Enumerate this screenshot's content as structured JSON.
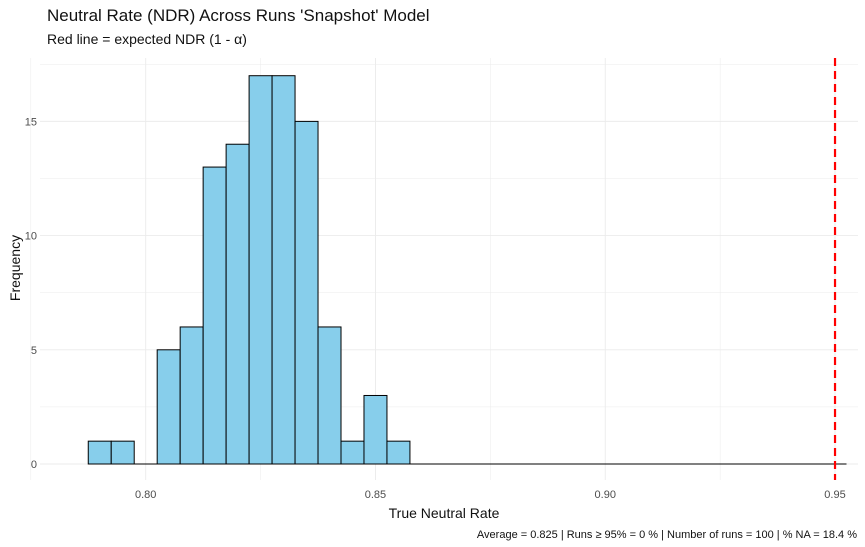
{
  "chart_data": {
    "type": "bar",
    "title": "Neutral Rate (NDR) Across Runs 'Snapshot' Model",
    "subtitle": "Red line = expected NDR (1 - α)",
    "xlabel": "True Neutral Rate",
    "ylabel": "Frequency",
    "caption": "Average = 0.825 | Runs ≥ 95% = 0 % | Number of runs = 100 | % NA = 18.4 %",
    "xlim": [
      0.777,
      0.955
    ],
    "ylim": [
      0,
      17.6
    ],
    "x_ticks": [
      0.8,
      0.85,
      0.9,
      0.95
    ],
    "x_tick_labels": [
      "0.80",
      "0.85",
      "0.90",
      "0.95"
    ],
    "y_ticks": [
      0,
      5,
      10,
      15
    ],
    "y_tick_labels": [
      "0",
      "5",
      "10",
      "15"
    ],
    "grid": true,
    "bin_width": 0.005,
    "bins": [
      {
        "start": 0.7875,
        "end": 0.7925,
        "count": 1
      },
      {
        "start": 0.7925,
        "end": 0.7975,
        "count": 1
      },
      {
        "start": 0.7975,
        "end": 0.8025,
        "count": 0
      },
      {
        "start": 0.8025,
        "end": 0.8075,
        "count": 5
      },
      {
        "start": 0.8075,
        "end": 0.8125,
        "count": 6
      },
      {
        "start": 0.8125,
        "end": 0.8175,
        "count": 13
      },
      {
        "start": 0.8175,
        "end": 0.8225,
        "count": 14
      },
      {
        "start": 0.8225,
        "end": 0.8275,
        "count": 17
      },
      {
        "start": 0.8275,
        "end": 0.8325,
        "count": 17
      },
      {
        "start": 0.8325,
        "end": 0.8375,
        "count": 15
      },
      {
        "start": 0.8375,
        "end": 0.8425,
        "count": 6
      },
      {
        "start": 0.8425,
        "end": 0.8475,
        "count": 1
      },
      {
        "start": 0.8475,
        "end": 0.8525,
        "count": 3
      },
      {
        "start": 0.8525,
        "end": 0.8575,
        "count": 1
      },
      {
        "start": 0.8575,
        "end": 0.9525,
        "count": 0
      }
    ],
    "reference_line": {
      "x": 0.95,
      "color": "#ff0000",
      "style": "dashed"
    },
    "colors": {
      "bar_fill": "#87ceeb",
      "bar_stroke": "#000000",
      "grid": "#ebebeb"
    }
  }
}
